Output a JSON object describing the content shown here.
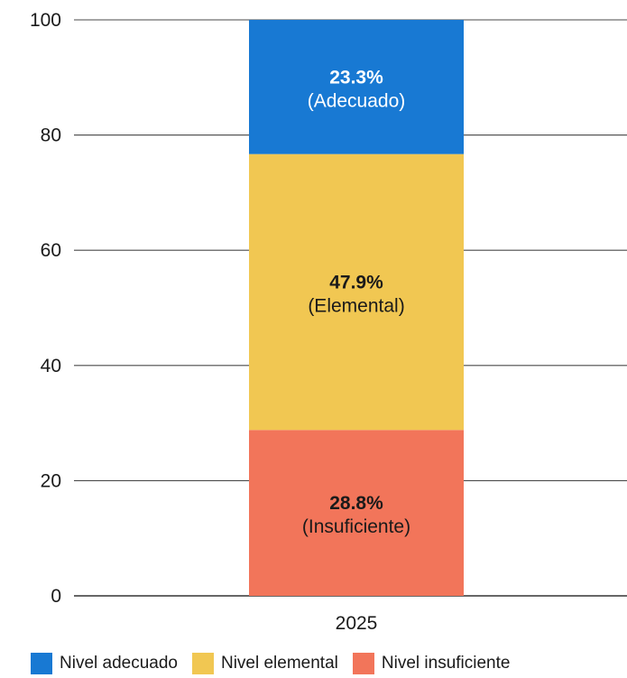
{
  "chart_data": {
    "type": "bar",
    "stacked": true,
    "categories": [
      "2025"
    ],
    "ylim": [
      0,
      100
    ],
    "yticks": [
      0,
      20,
      40,
      60,
      80,
      100
    ],
    "grid": true,
    "legend_position": "bottom",
    "series": [
      {
        "name": "Nivel insuficiente",
        "values": [
          28.8
        ],
        "label": "28.8%",
        "sublabel": "(Insuficiente)",
        "color": "#f2755a",
        "label_color": "#1a1a1a"
      },
      {
        "name": "Nivel elemental",
        "values": [
          47.9
        ],
        "label": "47.9%",
        "sublabel": "(Elemental)",
        "color": "#f1c752",
        "label_color": "#1a1a1a"
      },
      {
        "name": "Nivel adecuado",
        "values": [
          23.3
        ],
        "label": "23.3%",
        "sublabel": "(Adecuado)",
        "color": "#1879d3",
        "label_color": "#ffffff"
      }
    ]
  },
  "legend": {
    "items": [
      {
        "label": "Nivel adecuado",
        "color": "#1879d3"
      },
      {
        "label": "Nivel elemental",
        "color": "#f1c752"
      },
      {
        "label": "Nivel insuficiente",
        "color": "#f2755a"
      }
    ]
  }
}
